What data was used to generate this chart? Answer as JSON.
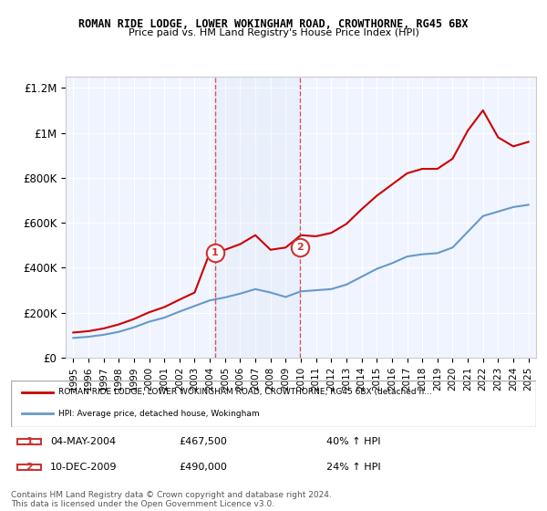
{
  "title": "ROMAN RIDE LODGE, LOWER WOKINGHAM ROAD, CROWTHORNE, RG45 6BX",
  "subtitle": "Price paid vs. HM Land Registry's House Price Index (HPI)",
  "legend_line1": "ROMAN RIDE LODGE, LOWER WOKINGHAM ROAD, CROWTHORNE, RG45 6BX (detached h...",
  "legend_line2": "HPI: Average price, detached house, Wokingham",
  "transaction1_label": "1",
  "transaction1_date": "04-MAY-2004",
  "transaction1_price": "£467,500",
  "transaction1_hpi": "40% ↑ HPI",
  "transaction2_label": "2",
  "transaction2_date": "10-DEC-2009",
  "transaction2_price": "£490,000",
  "transaction2_hpi": "24% ↑ HPI",
  "footer": "Contains HM Land Registry data © Crown copyright and database right 2024.\nThis data is licensed under the Open Government Licence v3.0.",
  "ylim": [
    0,
    1250000
  ],
  "yticks": [
    0,
    200000,
    400000,
    600000,
    800000,
    1000000,
    1200000
  ],
  "ytick_labels": [
    "£0",
    "£200K",
    "£400K",
    "£600K",
    "£800K",
    "£1M",
    "£1.2M"
  ],
  "red_color": "#cc0000",
  "blue_color": "#6699cc",
  "vline_color": "#cc3333",
  "transaction1_x": 2004.34,
  "transaction2_x": 2009.94,
  "hpi_years": [
    1995,
    1996,
    1997,
    1998,
    1999,
    2000,
    2001,
    2002,
    2003,
    2004,
    2005,
    2006,
    2007,
    2008,
    2009,
    2010,
    2011,
    2012,
    2013,
    2014,
    2015,
    2016,
    2017,
    2018,
    2019,
    2020,
    2021,
    2022,
    2023,
    2024,
    2025
  ],
  "hpi_values": [
    88000,
    93000,
    102000,
    115000,
    135000,
    160000,
    178000,
    205000,
    230000,
    255000,
    268000,
    285000,
    305000,
    290000,
    270000,
    295000,
    300000,
    305000,
    325000,
    360000,
    395000,
    420000,
    450000,
    460000,
    465000,
    490000,
    560000,
    630000,
    650000,
    670000,
    680000
  ],
  "prop_years": [
    1995,
    1996,
    1997,
    1998,
    1999,
    2000,
    2001,
    2002,
    2003,
    2004,
    2005,
    2006,
    2007,
    2008,
    2009,
    2010,
    2011,
    2012,
    2013,
    2014,
    2015,
    2016,
    2017,
    2018,
    2019,
    2020,
    2021,
    2022,
    2023,
    2024,
    2025
  ],
  "prop_values": [
    112000,
    118000,
    130000,
    148000,
    172000,
    202000,
    225000,
    258000,
    290000,
    467500,
    480000,
    505000,
    545000,
    480000,
    490000,
    545000,
    540000,
    555000,
    595000,
    660000,
    720000,
    770000,
    820000,
    840000,
    840000,
    885000,
    1010000,
    1100000,
    980000,
    940000,
    960000
  ],
  "xtick_years": [
    1995,
    1996,
    1997,
    1998,
    1999,
    2000,
    2001,
    2002,
    2003,
    2004,
    2005,
    2006,
    2007,
    2008,
    2009,
    2010,
    2011,
    2012,
    2013,
    2014,
    2015,
    2016,
    2017,
    2018,
    2019,
    2020,
    2021,
    2022,
    2023,
    2024,
    2025
  ]
}
